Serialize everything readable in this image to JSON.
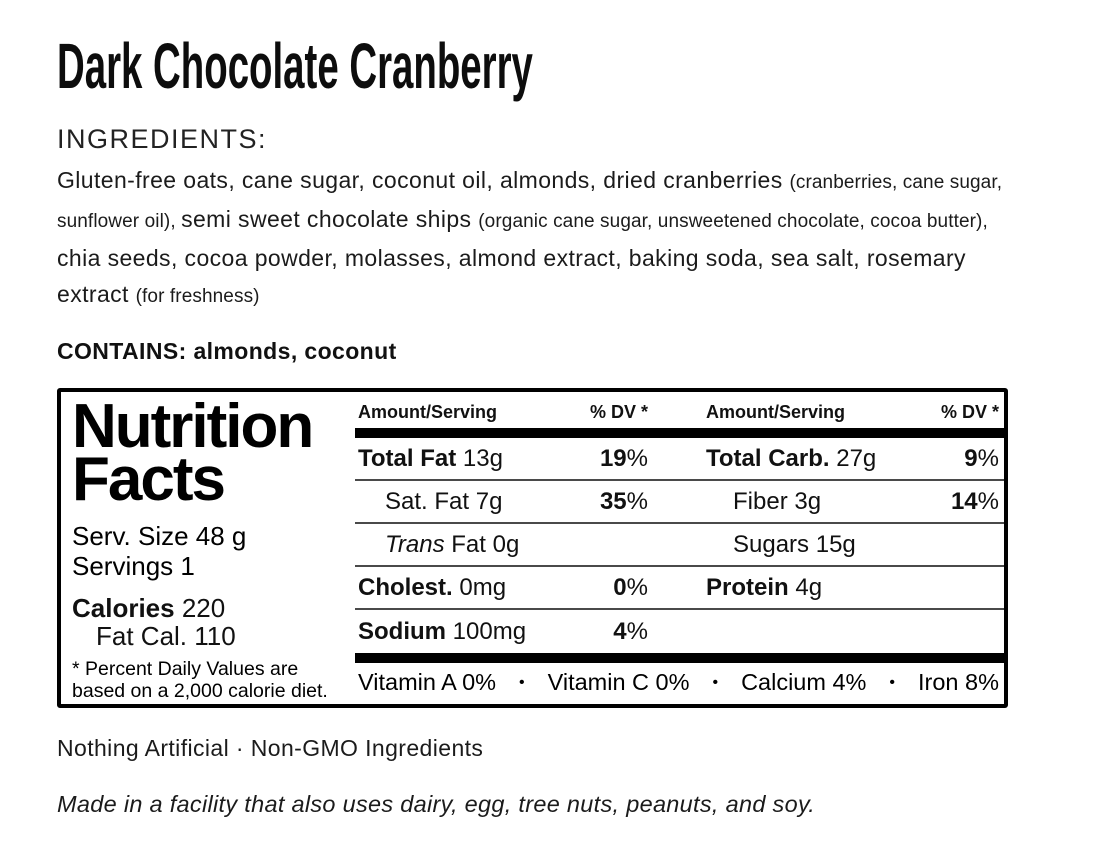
{
  "page": {
    "title": "Dark Chocolate Cranberry",
    "ingredients_heading": "INGREDIENTS:",
    "ingredients_segments": [
      {
        "style": "main",
        "text": "Gluten-free oats, cane sugar, coconut oil, almonds, dried cranberries "
      },
      {
        "style": "sub",
        "text": "(cranberries, cane sugar, sunflower oil), "
      },
      {
        "style": "main",
        "text": "semi sweet chocolate ships "
      },
      {
        "style": "sub",
        "text": "(organic cane sugar, unsweetened chocolate, cocoa butter), "
      },
      {
        "style": "main",
        "text": "chia seeds, cocoa powder, molasses, almond extract, baking soda, sea salt, rosemary extract "
      },
      {
        "style": "sub",
        "text": "(for freshness)"
      }
    ],
    "contains": "CONTAINS: almonds, coconut",
    "claims": "Nothing Artificial · Non-GMO Ingredients",
    "facility_note": "Made in a facility that also uses dairy, egg, tree nuts, peanuts, and soy."
  },
  "nutrition": {
    "title_line1": "Nutrition",
    "title_line2": "Facts",
    "serving_size": "Serv. Size 48 g",
    "servings": "Servings 1",
    "calories_label": "Calories",
    "calories_value": "220",
    "fat_calories": "Fat Cal. 110",
    "footnote_line1": "* Percent Daily Values are",
    "footnote_line2": "based on a 2,000 calorie diet.",
    "column_headers": {
      "amount": "Amount/Serving",
      "dv": "% DV *"
    },
    "rows": [
      {
        "left": {
          "name": "Total Fat",
          "amount": "13g",
          "dv": "19",
          "bold": true,
          "indent": false
        },
        "right": {
          "name": "Total Carb.",
          "amount": "27g",
          "dv": "9",
          "bold": true,
          "indent": false
        }
      },
      {
        "left": {
          "name": "Sat. Fat",
          "amount": "7g",
          "dv": "35",
          "bold": false,
          "indent": true
        },
        "right": {
          "name": "Fiber",
          "amount": "3g",
          "dv": "14",
          "bold": false,
          "indent": true
        }
      },
      {
        "left": {
          "name_italic": "Trans",
          "name": " Fat",
          "amount": "0g",
          "dv": "",
          "bold": false,
          "indent": true
        },
        "right": {
          "name": "Sugars",
          "amount": "15g",
          "dv": "",
          "bold": false,
          "indent": true
        }
      },
      {
        "left": {
          "name": "Cholest.",
          "amount": "0mg",
          "dv": "0",
          "bold": true,
          "indent": false
        },
        "right": {
          "name": "Protein",
          "amount": "4g",
          "dv": "",
          "bold": true,
          "indent": false
        }
      },
      {
        "left": {
          "name": "Sodium",
          "amount": "100mg",
          "dv": "4",
          "bold": true,
          "indent": false
        },
        "right": null
      }
    ],
    "vitamins": [
      "Vitamin A 0%",
      "Vitamin C 0%",
      "Calcium 4%",
      "Iron 8%"
    ],
    "colors": {
      "text": "#000000",
      "rule": "#4a4a4a",
      "bar": "#000000"
    }
  }
}
